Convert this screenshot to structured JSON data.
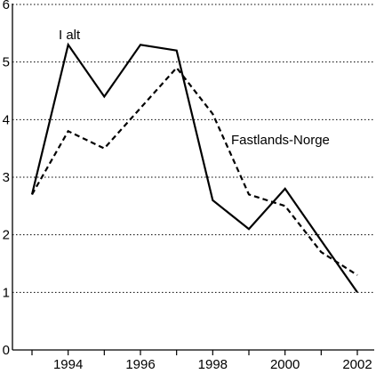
{
  "chart_data": {
    "type": "line",
    "x": [
      1993,
      1994,
      1995,
      1996,
      1997,
      1998,
      1999,
      2000,
      2001,
      2002
    ],
    "xticks": [
      1994,
      1996,
      1998,
      2000,
      2002
    ],
    "xlim": [
      1993,
      2002
    ],
    "ylim": [
      0,
      6
    ],
    "yticks": [
      0,
      1,
      2,
      3,
      4,
      5,
      6
    ],
    "grid": "horizontal-dotted",
    "series": [
      {
        "name": "I alt",
        "style": "solid",
        "color": "#000000",
        "values": [
          2.7,
          5.3,
          4.4,
          5.3,
          5.2,
          2.6,
          2.1,
          2.8,
          1.9,
          1.0
        ]
      },
      {
        "name": "Fastlands-Norge",
        "style": "dashed",
        "color": "#000000",
        "values": [
          2.7,
          3.8,
          3.5,
          4.2,
          4.9,
          4.1,
          2.7,
          2.5,
          1.7,
          1.3
        ]
      }
    ]
  }
}
